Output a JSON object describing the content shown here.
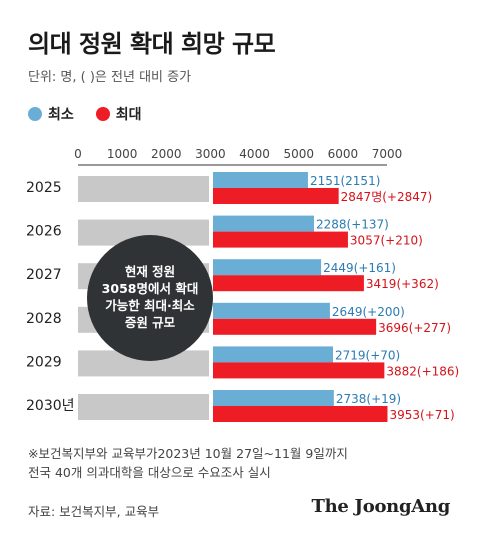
{
  "title": "의대 정원 확대 희망 규모",
  "subtitle": "단위: 명, ( )은 전년 대비 증가",
  "legend": {
    "min_label": "최소",
    "max_label": "최대",
    "min_color": "#6aaed6",
    "max_color": "#ee1c25"
  },
  "annotation": {
    "line1": "현재 정원",
    "line2": "3058명에서 확대",
    "line3": "가능한 최대·최소",
    "line4": "증원 규모"
  },
  "chart_data": {
    "type": "bar",
    "orientation": "horizontal",
    "categories": [
      "2025",
      "2026",
      "2027",
      "2028",
      "2029",
      "2030년"
    ],
    "xlim": [
      0,
      7000
    ],
    "xticks": [
      "0",
      "1000",
      "2000",
      "3000",
      "4000",
      "5000",
      "6000",
      "7000"
    ],
    "baseline": 3058,
    "series": [
      {
        "name": "최소",
        "values": [
          2151,
          2288,
          2449,
          2649,
          2719,
          2738
        ],
        "labels": [
          "2151(2151)",
          "2288(+137)",
          "2449(+161)",
          "2649(+200)",
          "2719(+70)",
          "2738(+19)"
        ]
      },
      {
        "name": "최대",
        "values": [
          2847,
          3057,
          3419,
          3696,
          3882,
          3953
        ],
        "labels": [
          "2847명(+2847)",
          "3057(+210)",
          "3419(+362)",
          "3696(+277)",
          "3882(+186)",
          "3953(+71)"
        ]
      }
    ]
  },
  "footnote": {
    "line1": "※보건복지부와 교육부가2023년 10월 27일~11월 9일까지",
    "line2": "전국 40개 의과대학을 대상으로 수요조사 실시"
  },
  "source": "자료: 보건복지부, 교육부",
  "brand": "The JoongAng"
}
